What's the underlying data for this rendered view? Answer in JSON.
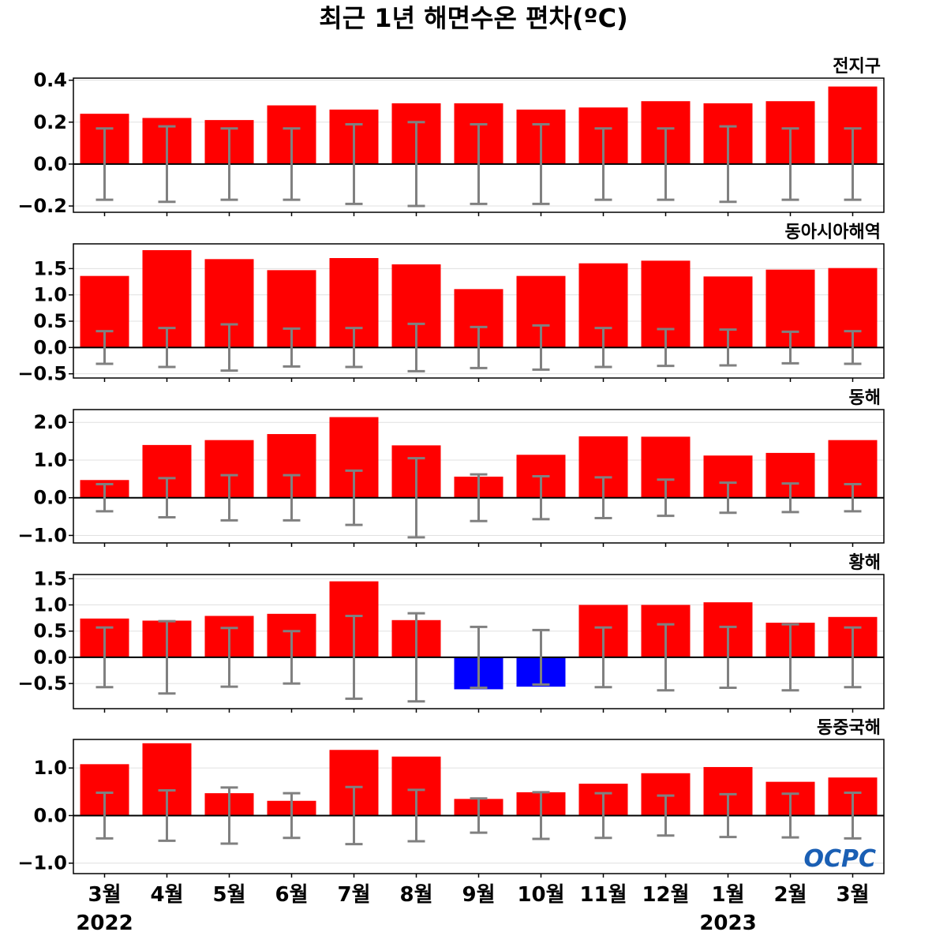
{
  "title": "최근 1년 해면수온 편차(ºC)",
  "colors": {
    "positive": "#ff0000",
    "negative": "#0000ff",
    "errorbar": "#808080",
    "grid": "#e0e0e0"
  },
  "logo": "OCPC",
  "years": [
    {
      "label": "2022",
      "month_index": 0
    },
    {
      "label": "2023",
      "month_index": 10
    }
  ],
  "chart_data": [
    {
      "type": "bar",
      "name": "전지구",
      "categories": [
        "3월",
        "4월",
        "5월",
        "6월",
        "7월",
        "8월",
        "9월",
        "10월",
        "11월",
        "12월",
        "1월",
        "2월",
        "3월"
      ],
      "values": [
        0.24,
        0.22,
        0.21,
        0.28,
        0.26,
        0.29,
        0.29,
        0.26,
        0.27,
        0.3,
        0.29,
        0.3,
        0.37
      ],
      "error_range": [
        0.17,
        0.18,
        0.17,
        0.17,
        0.19,
        0.2,
        0.19,
        0.19,
        0.17,
        0.17,
        0.18,
        0.17,
        0.17
      ],
      "ylim": [
        -0.23,
        0.41
      ],
      "yticks": [
        -0.2,
        0.0,
        0.2,
        0.4
      ],
      "ytick_labels": [
        "−0.2",
        "0.0",
        "0.2",
        "0.4"
      ]
    },
    {
      "type": "bar",
      "name": "동아시아해역",
      "categories": [
        "3월",
        "4월",
        "5월",
        "6월",
        "7월",
        "8월",
        "9월",
        "10월",
        "11월",
        "12월",
        "1월",
        "2월",
        "3월"
      ],
      "values": [
        1.36,
        1.85,
        1.68,
        1.47,
        1.7,
        1.58,
        1.11,
        1.36,
        1.6,
        1.65,
        1.35,
        1.48,
        1.51
      ],
      "error_range": [
        0.31,
        0.37,
        0.44,
        0.36,
        0.37,
        0.45,
        0.39,
        0.42,
        0.37,
        0.35,
        0.34,
        0.3,
        0.31
      ],
      "ylim": [
        -0.58,
        1.97
      ],
      "yticks": [
        -0.5,
        0.0,
        0.5,
        1.0,
        1.5
      ],
      "ytick_labels": [
        "−0.5",
        "0.0",
        "0.5",
        "1.0",
        "1.5"
      ]
    },
    {
      "type": "bar",
      "name": "동해",
      "categories": [
        "3월",
        "4월",
        "5월",
        "6월",
        "7월",
        "8월",
        "9월",
        "10월",
        "11월",
        "12월",
        "1월",
        "2월",
        "3월"
      ],
      "values": [
        0.47,
        1.4,
        1.53,
        1.69,
        2.14,
        1.39,
        0.56,
        1.14,
        1.63,
        1.62,
        1.12,
        1.19,
        1.53
      ],
      "error_range": [
        0.36,
        0.52,
        0.6,
        0.6,
        0.72,
        1.05,
        0.62,
        0.57,
        0.54,
        0.48,
        0.4,
        0.38,
        0.36
      ],
      "ylim": [
        -1.2,
        2.34
      ],
      "yticks": [
        -1.0,
        0.0,
        1.0,
        2.0
      ],
      "ytick_labels": [
        "−1.0",
        "0.0",
        "1.0",
        "2.0"
      ]
    },
    {
      "type": "bar",
      "name": "황해",
      "categories": [
        "3월",
        "4월",
        "5월",
        "6월",
        "7월",
        "8월",
        "9월",
        "10월",
        "11월",
        "12월",
        "1월",
        "2월",
        "3월"
      ],
      "values": [
        0.74,
        0.7,
        0.79,
        0.83,
        1.45,
        0.71,
        -0.61,
        -0.56,
        1.0,
        1.0,
        1.05,
        0.66,
        0.77
      ],
      "error_range": [
        0.57,
        0.69,
        0.56,
        0.5,
        0.79,
        0.84,
        0.58,
        0.52,
        0.57,
        0.63,
        0.58,
        0.63,
        0.57
      ],
      "ylim": [
        -0.98,
        1.58
      ],
      "yticks": [
        -0.5,
        0.0,
        0.5,
        1.0,
        1.5
      ],
      "ytick_labels": [
        "−0.5",
        "0.0",
        "0.5",
        "1.0",
        "1.5"
      ]
    },
    {
      "type": "bar",
      "name": "동중국해",
      "categories": [
        "3월",
        "4월",
        "5월",
        "6월",
        "7월",
        "8월",
        "9월",
        "10월",
        "11월",
        "12월",
        "1월",
        "2월",
        "3월"
      ],
      "values": [
        1.08,
        1.52,
        0.47,
        0.31,
        1.38,
        1.24,
        0.35,
        0.49,
        0.67,
        0.89,
        1.02,
        0.71,
        0.8
      ],
      "error_range": [
        0.48,
        0.53,
        0.59,
        0.47,
        0.6,
        0.54,
        0.36,
        0.49,
        0.47,
        0.42,
        0.45,
        0.46,
        0.48
      ],
      "ylim": [
        -1.22,
        1.6
      ],
      "yticks": [
        -1.0,
        0.0,
        1.0
      ],
      "ytick_labels": [
        "−1.0",
        "0.0",
        "1.0"
      ]
    }
  ]
}
